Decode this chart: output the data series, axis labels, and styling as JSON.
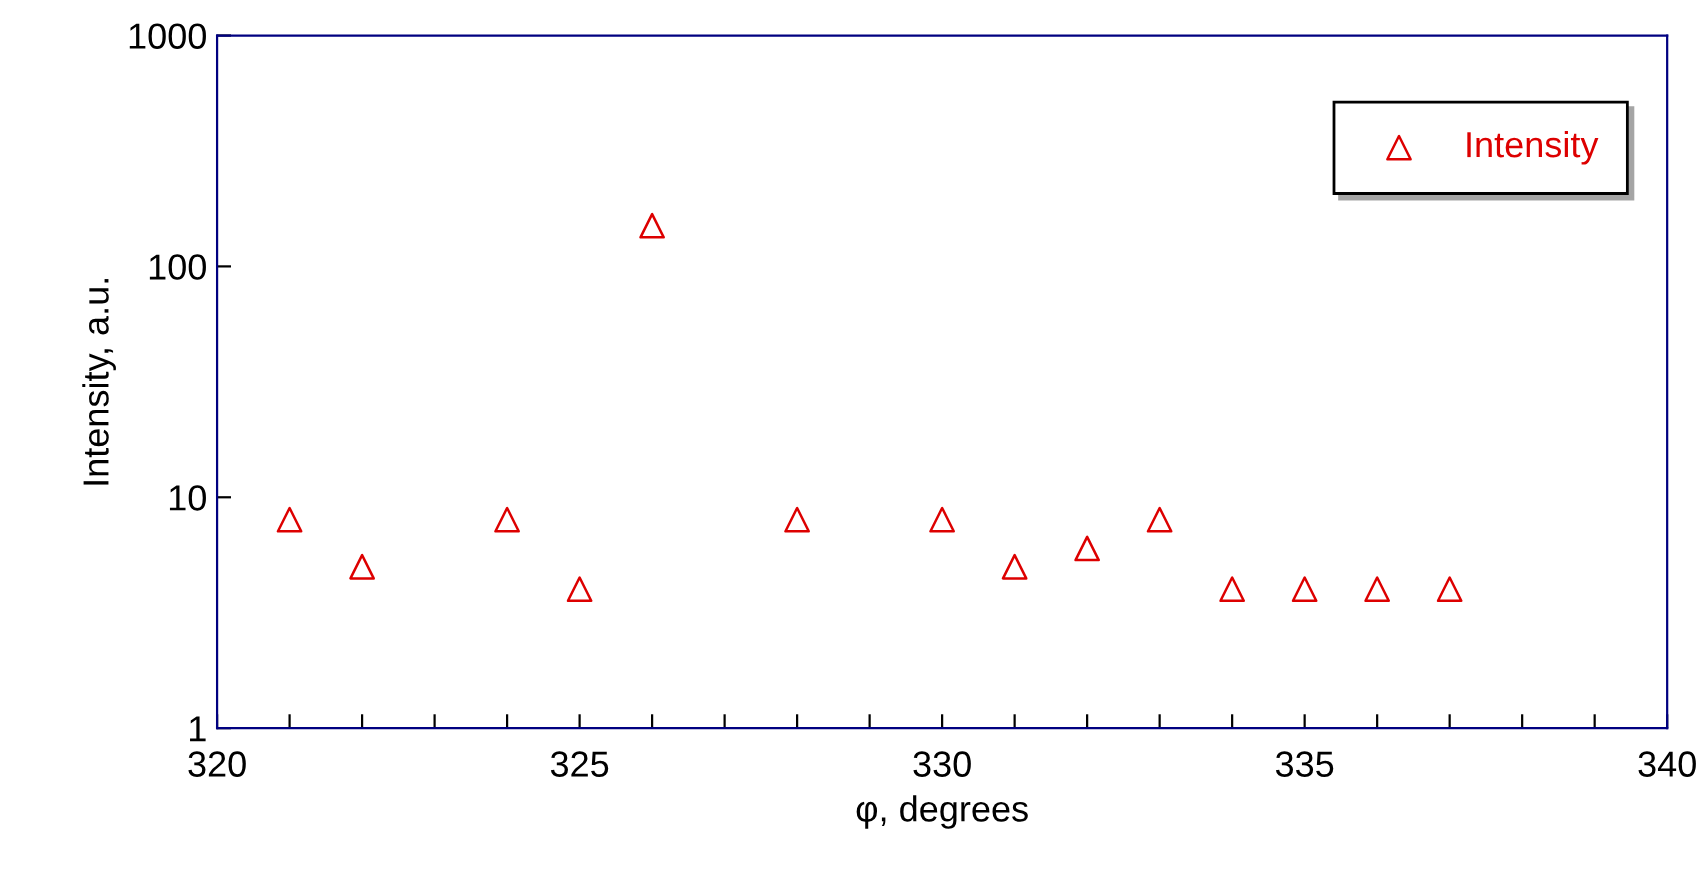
{
  "chart_data": {
    "type": "scatter",
    "xlabel": "φ, degrees",
    "ylabel": "Intensity, a.u.",
    "series": [
      {
        "name": "Intensity",
        "color": "#dd0000",
        "x": [
          321,
          322,
          324,
          325,
          326,
          328,
          330,
          331,
          332,
          333,
          334,
          335,
          336,
          337
        ],
        "values": [
          8,
          5,
          8,
          4,
          150,
          8,
          8,
          5,
          6,
          8,
          4,
          4,
          4,
          4
        ]
      }
    ],
    "log": "y",
    "xlim": [
      320,
      340
    ],
    "ylim": [
      1,
      1000
    ],
    "xticks": [
      320,
      {
        "value": 321,
        "label": null
      },
      {
        "value": 322,
        "label": null
      },
      {
        "value": 323,
        "label": null
      },
      {
        "value": 324,
        "label": null
      },
      325,
      {
        "value": 326,
        "label": null
      },
      {
        "value": 327,
        "label": null
      },
      {
        "value": 328,
        "label": null
      },
      {
        "value": 329,
        "label": null
      },
      330,
      {
        "value": 331,
        "label": null
      },
      {
        "value": 332,
        "label": null
      },
      {
        "value": 333,
        "label": null
      },
      {
        "value": 334,
        "label": null
      },
      335,
      {
        "value": 336,
        "label": null
      },
      {
        "value": 337,
        "label": null
      },
      {
        "value": 338,
        "label": null
      },
      {
        "value": 339,
        "label": null
      },
      340
    ],
    "yticks": [
      1,
      10,
      100,
      1000
    ],
    "marker": "triangle",
    "grid": false,
    "legend": "top right"
  }
}
